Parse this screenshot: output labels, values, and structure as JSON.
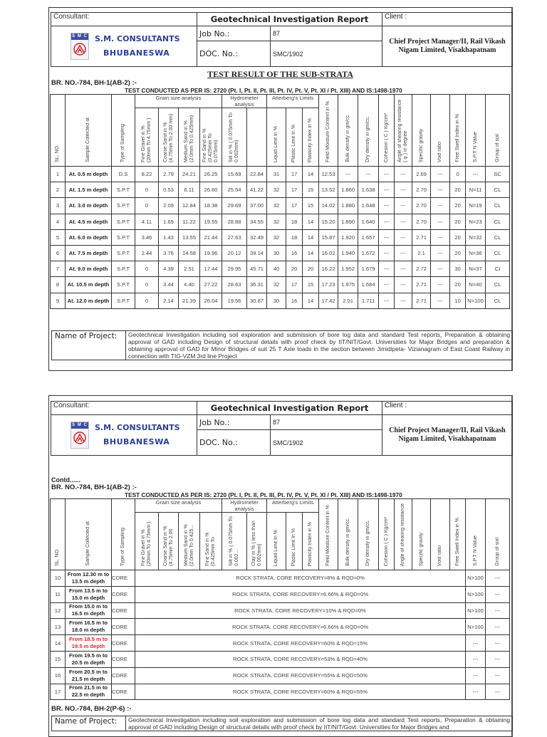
{
  "header": {
    "consultant_label": "Consultant:",
    "report_title": "Geotechnical Investigation Report",
    "client_label": "Client :",
    "logo_text": "S M C",
    "company_name": "S.M. CONSULTANTS",
    "company_city": "BHUBANESWA",
    "job_no_label": "Job No.:",
    "job_no": "87",
    "doc_no_label": "DOC. No.:",
    "doc_no": "SMC/1902",
    "client": "Chief Project Manager/II, Rail Vikash Nigam Limited, Visakhapatnam"
  },
  "colors": {
    "accent": "#2b3f9a",
    "highlight": "#e8262a"
  },
  "page1": {
    "title": "TEST RESULT OF THE SUB-STRATA",
    "borehole": "BR. NO.-784, BH-1(AB-2) :-",
    "conducted": "TEST CONDUCTED AS PER IS: 2720 (Pt. I, Pt. II, Pt. III, Pt. IV, Pt. V, Pt. XI / Pt. XIII) AND IS:1498-1970",
    "groups": [
      "Grain size analysis",
      "Hydrometer analysis",
      "Atterberg's Limits"
    ],
    "columns": [
      "SL.   NO.",
      "Sample Collected at",
      "Type of Sampling",
      "Fine Gravel in % (20mm To 4.75mm )",
      "Coarse Sand in % (4.75mm To 2.00 mm)",
      "Medium Sand in % (2.0mm To 0.425mm)",
      "Fine Sand in % (0.425mm To 0.075mm)",
      "Silt in % ( 0.075mm To 0.002mm)",
      "",
      "Liquid Limit In %",
      "Plastic Limit In %",
      "Plasticity Index in  %",
      "Field Moisture Content in %",
      "Bulk density in gm/cc.",
      "Dry density in gm/cc.",
      "Cohesion  ( C )  Kg/cm²",
      "Angle of shearing resistance ( φ ) in degree",
      "Specific gravity",
      "Void ratio",
      "Free Swell Index  in %",
      "S.P.T  N Value",
      "Group of soil"
    ],
    "rows": [
      [
        "1",
        "At. 0.5 m depth",
        "D.S",
        "8.22",
        "2.79",
        "24.21",
        "26.25",
        "15.69",
        "22.84",
        "31",
        "17",
        "14",
        "12.53",
        "---",
        "---",
        "---",
        "---",
        "2.69",
        "---",
        "0",
        "---",
        "SC"
      ],
      [
        "2",
        "At. 1.5 m depth",
        "S.P.T",
        "0",
        "0.53",
        "6.11",
        "26.60",
        "25.54",
        "41.22",
        "32",
        "17",
        "15",
        "13.52",
        "1.860",
        "1.638",
        "---",
        "---",
        "2.70",
        "---",
        "20",
        "N=11",
        "CL"
      ],
      [
        "3",
        "At. 3.0 m depth",
        "S.P.T",
        "0",
        "2.09",
        "12.84",
        "18.38",
        "29.69",
        "37.00",
        "32",
        "17",
        "15",
        "14.02",
        "1.880",
        "1.648",
        "---",
        "---",
        "2.70",
        "---",
        "20",
        "N=19",
        "CL"
      ],
      [
        "4",
        "At. 4.5 m depth",
        "S.P.T",
        "4.11",
        "1.69",
        "11.22",
        "19.55",
        "28.88",
        "34.55",
        "32",
        "18",
        "14",
        "15.20",
        "1.890",
        "1.640",
        "---",
        "---",
        "2.70",
        "---",
        "20",
        "N=23",
        "CL"
      ],
      [
        "5",
        "At. 6.0 m depth",
        "S.P.T",
        "3.46",
        "1.43",
        "13.55",
        "21.44",
        "27.63",
        "32.49",
        "32",
        "18",
        "14",
        "15.87",
        "1.920",
        "1.657",
        "---",
        "---",
        "2.71",
        "---",
        "20",
        "N=32",
        "CL"
      ],
      [
        "6",
        "At. 7.5 m depth",
        "S.P.T",
        "2.44",
        "3.76",
        "14.58",
        "19.96",
        "20.12",
        "39.14",
        "30",
        "16",
        "14",
        "16.02",
        "1.940",
        "1.672",
        "---",
        "---",
        "2.1",
        "---",
        "20",
        "N=36",
        "CL"
      ],
      [
        "7",
        "At. 9.0 m depth",
        "S.P.T",
        "0",
        "4.39",
        "2.51",
        "17.44",
        "29.95",
        "45.71",
        "40",
        "20",
        "20",
        "16.22",
        "1.952",
        "1.679",
        "---",
        "---",
        "2.72",
        "---",
        "30",
        "N=37",
        "CI"
      ],
      [
        "8",
        "At. 10.5 m depth",
        "S.P.T",
        "0",
        "3.44",
        "4.40",
        "27.22",
        "28.63",
        "36.31",
        "32",
        "17",
        "15",
        "17.23",
        "1.975",
        "1.684",
        "---",
        "---",
        "2.71",
        "---",
        "20",
        "N=40",
        "CL"
      ],
      [
        "9",
        "At. 12.0 m depth",
        "S.P.T",
        "0",
        "2.14",
        "21.39",
        "26.04",
        "19.56",
        "30.87",
        "30",
        "16",
        "14",
        "17.42",
        "2.01",
        "1.711",
        "---",
        "---",
        "2.71",
        "---",
        "10",
        "N>100",
        "CL"
      ]
    ],
    "project_label": "Name of Project:",
    "project": "Geotechnical Investigation including soil exploration and submission of bore log data and standard Test reports, Preparation & obtaining approval of GAD including Design of structural details with proof check by IIT/NIT/Govt. Universities for Major Bridges and preparation & obtaining approval of GAD for Minor Bridges of suit 25 T Axle loads in the section between Jimidipeta- Vizianagram of East Coast Railway in connection with TIG-VZM 3rd line Project"
  },
  "page2": {
    "contd": "Contd......",
    "borehole": "BR. NO.-784, BH-1(AB-2) :-",
    "conducted": "TEST CONDUCTED AS PER IS: 2720 (Pt. I, Pt. II, Pt. III, Pt. IV, Pt. V, Pt. XI / Pt. XIII) AND IS:1498-1970",
    "groups": [
      "Grain size analysis",
      "Hydrometer analysis",
      "Atterberg's Limits"
    ],
    "columns": [
      "SL.   NO.",
      "Sample Collected at",
      "Type of Sampling",
      "Fine Gravel in % (20mm To 4.75mm )",
      "Coarse Sand in % (4.75mm To 2.00",
      "Medium Sand in % (2.0mm To 0.425...",
      "Fine Sand in % (0.425mm To",
      "Silt in % ( 0.075mm To 0.002...",
      "Clay in % ( less than 0.002mm)",
      "Liquid Limit In %",
      "Plastic Limit In %",
      "Plasticity Index in %",
      "Field Moisture Content in %",
      "Bulk density in gm/cc.",
      "Dry density in gm/cc.",
      "Cohesion  ( C )  Kg/cm²",
      "Angle of shearing resistance",
      "Specific gravity",
      "Void ratio",
      "Free Swell Index  in %",
      "S.P.T  N Value",
      "Group of soil"
    ],
    "rows": [
      {
        "sl": "10",
        "sample": "From 12.30 m to 13.5 m depth",
        "type": "CORE",
        "remark": "ROCK STRATA, CORE RECOVERY=8% & RQD=0%",
        "spt": "N>100",
        "group": "---",
        "highlight": false
      },
      {
        "sl": "11",
        "sample": "From 13.5 m to 15.0 m depth",
        "type": "CORE",
        "remark": "ROCK STRATA, CORE RECOVERY=6.66% & RQD=0%",
        "spt": "N>100",
        "group": "---",
        "highlight": false
      },
      {
        "sl": "12",
        "sample": "From 15.0 m to 16.5 m depth",
        "type": "CORE",
        "remark": "ROCK STRATA, CORE RECOVERY=10% & RQD=0%",
        "spt": "N>100",
        "group": "---",
        "highlight": false
      },
      {
        "sl": "13",
        "sample": "From 16.5 m to 18.0 m depth",
        "type": "CORE",
        "remark": "ROCK STRATA, CORE RECOVERY=6.66% & RQD=0%",
        "spt": "N>100",
        "group": "---",
        "highlight": false
      },
      {
        "sl": "14",
        "sample": "From 18.5 m to 19.5 m depth",
        "type": "CORE",
        "remark": "ROCK STRATA, CORE RECOVERY=60% & RQD=15%",
        "spt": "---",
        "group": "---",
        "highlight": true
      },
      {
        "sl": "15",
        "sample": "From 19.5 m to 20.5 m depth",
        "type": "CORE",
        "remark": "ROCK STRATA, CORE RECOVERY=53% & RQD=40%",
        "spt": "---",
        "group": "---",
        "highlight": false
      },
      {
        "sl": "16",
        "sample": "From 20.5 m to 21.5 m depth",
        "type": "CORE",
        "remark": "ROCK STRATA, CORE RECOVERY=55% & RQD=50%",
        "spt": "---",
        "group": "---",
        "highlight": false
      },
      {
        "sl": "17",
        "sample": "From 21.5 m to 22.5 m depth",
        "type": "CORE",
        "remark": "ROCK STRATA, CORE RECOVERY=60% & RQD=55%",
        "spt": "---",
        "group": "---",
        "highlight": false
      }
    ],
    "borehole2": "BR. NO.-784, BH-2(P-6) :-",
    "project_label": "Name of Project:",
    "project": "Geotechnical Investigation including soil exploration and submission of bore log data and standard Test reports, Preparation & obtaining approval of GAD including Design of structural details with proof check by IIT/NIT/Govt. Universities for Major Bridges and"
  }
}
